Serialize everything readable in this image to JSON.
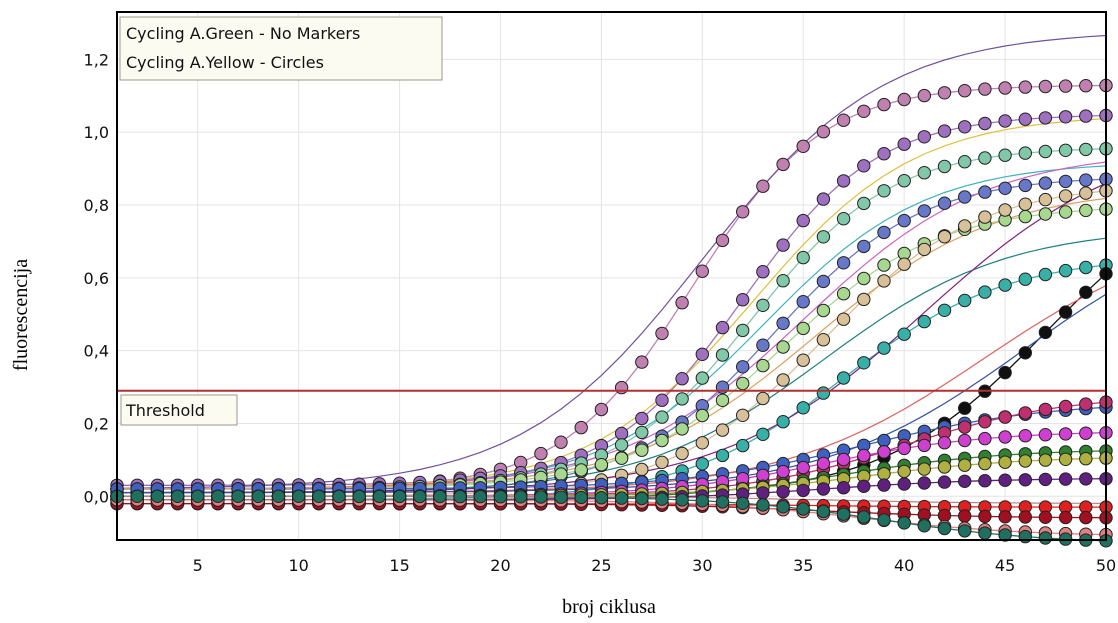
{
  "chart_data": {
    "type": "line",
    "xlabel": "broj ciklusa",
    "ylabel": "fluorescencija",
    "xlim": [
      1,
      50
    ],
    "ylim": [
      -0.12,
      1.33
    ],
    "x_ticks": [
      5,
      10,
      15,
      20,
      25,
      30,
      35,
      40,
      45,
      50
    ],
    "y_ticks": [
      0.0,
      0.2,
      0.4,
      0.6,
      0.8,
      1.0,
      1.2
    ],
    "y_tick_labels": [
      "0,0",
      "0,2",
      "0,4",
      "0,6",
      "0,8",
      "1,0",
      "1,2"
    ],
    "grid": true,
    "legend": {
      "position": "top-left",
      "entries": [
        "Cycling A.Green - No Markers",
        "Cycling A.Yellow - Circles"
      ]
    },
    "threshold": {
      "label": "Threshold",
      "value": 0.29,
      "color": "#b03030"
    },
    "series": [
      {
        "color": "#c080b0",
        "markers": true,
        "base": 0.02,
        "plateau": 1.13,
        "mid": 29.5,
        "slope": 3.2
      },
      {
        "color": "#a070c0",
        "markers": true,
        "base": 0.03,
        "plateau": 1.05,
        "mid": 32.0,
        "slope": 3.3
      },
      {
        "color": "#80c8a8",
        "markers": true,
        "base": 0.02,
        "plateau": 0.96,
        "mid": 32.5,
        "slope": 3.4
      },
      {
        "color": "#6878c8",
        "markers": true,
        "base": 0.01,
        "plateau": 0.88,
        "mid": 33.5,
        "slope": 3.6
      },
      {
        "color": "#a8d890",
        "markers": true,
        "base": 0.02,
        "plateau": 0.8,
        "mid": 34.0,
        "slope": 3.8
      },
      {
        "color": "#d8c098",
        "markers": true,
        "base": 0.0,
        "plateau": 0.86,
        "mid": 36.0,
        "slope": 3.8
      },
      {
        "color": "#38b0a8",
        "markers": true,
        "base": -0.01,
        "plateau": 0.66,
        "mid": 37.0,
        "slope": 4.0
      },
      {
        "color": "#101010",
        "markers": true,
        "base": 0.0,
        "plateau": 0.9,
        "mid": 47.0,
        "slope": 4.0
      },
      {
        "color": "#4060c0",
        "markers": true,
        "base": 0.02,
        "plateau": 0.26,
        "mid": 38.0,
        "slope": 4.5
      },
      {
        "color": "#c03070",
        "markers": true,
        "base": 0.0,
        "plateau": 0.28,
        "mid": 40.0,
        "slope": 4.0
      },
      {
        "color": "#d040d0",
        "markers": true,
        "base": 0.0,
        "plateau": 0.18,
        "mid": 36.0,
        "slope": 4.0
      },
      {
        "color": "#308030",
        "markers": true,
        "base": -0.01,
        "plateau": 0.13,
        "mid": 37.0,
        "slope": 4.0
      },
      {
        "color": "#b0b040",
        "markers": true,
        "base": 0.0,
        "plateau": 0.11,
        "mid": 38.0,
        "slope": 4.0
      },
      {
        "color": "#602080",
        "markers": true,
        "base": -0.01,
        "plateau": 0.05,
        "mid": 36.0,
        "slope": 4.0
      },
      {
        "color": "#e02020",
        "markers": true,
        "base": -0.02,
        "plateau": -0.03,
        "mid": 35.0,
        "slope": 4.0
      },
      {
        "color": "#a01020",
        "markers": true,
        "base": -0.02,
        "plateau": -0.06,
        "mid": 36.0,
        "slope": 4.0
      },
      {
        "color": "#e08080",
        "markers": true,
        "base": -0.01,
        "plateau": -0.11,
        "mid": 38.0,
        "slope": 4.0
      },
      {
        "color": "#207060",
        "markers": true,
        "base": 0.0,
        "plateau": -0.13,
        "mid": 39.0,
        "slope": 4.0
      },
      {
        "color": "#7050a0",
        "markers": false,
        "base": 0.02,
        "plateau": 1.28,
        "mid": 30.0,
        "slope": 4.5
      },
      {
        "color": "#e0c040",
        "markers": false,
        "base": 0.02,
        "plateau": 1.05,
        "mid": 32.5,
        "slope": 4.0
      },
      {
        "color": "#40b0c0",
        "markers": false,
        "base": 0.02,
        "plateau": 0.92,
        "mid": 33.0,
        "slope": 4.0
      },
      {
        "color": "#d060c0",
        "markers": false,
        "base": 0.02,
        "plateau": 0.95,
        "mid": 35.0,
        "slope": 4.5
      },
      {
        "color": "#e0a060",
        "markers": false,
        "base": 0.02,
        "plateau": 0.85,
        "mid": 35.5,
        "slope": 4.5
      },
      {
        "color": "#208080",
        "markers": false,
        "base": 0.01,
        "plateau": 0.74,
        "mid": 36.0,
        "slope": 4.5
      },
      {
        "color": "#802080",
        "markers": false,
        "base": 0.01,
        "plateau": 1.0,
        "mid": 41.0,
        "slope": 5.0
      },
      {
        "color": "#e06060",
        "markers": false,
        "base": 0.01,
        "plateau": 0.75,
        "mid": 44.0,
        "slope": 5.0
      },
      {
        "color": "#3050a0",
        "markers": false,
        "base": 0.01,
        "plateau": 0.8,
        "mid": 46.0,
        "slope": 5.0
      },
      {
        "color": "#c08080",
        "markers": false,
        "base": 0.0,
        "plateau": -0.02,
        "mid": 36.0,
        "slope": 4.0
      }
    ]
  }
}
